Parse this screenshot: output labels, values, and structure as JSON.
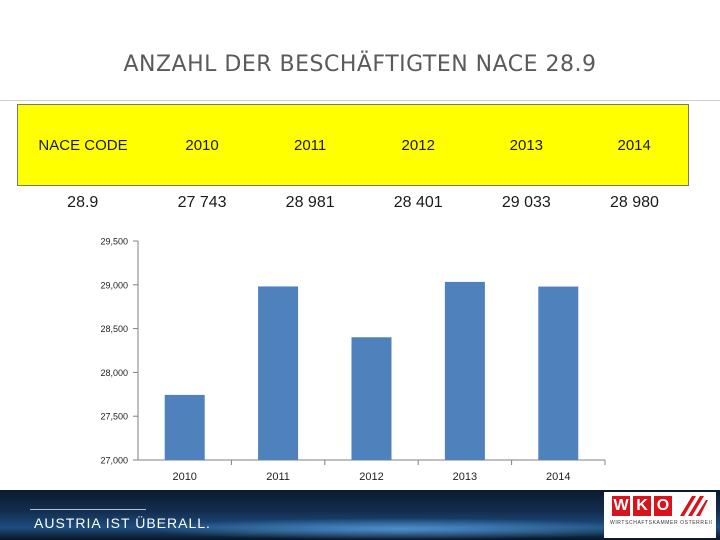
{
  "page": {
    "title": "ANZAHL DER BESCHÄFTIGTEN NACE 28.9",
    "colors": {
      "header_fill": "#ffff00",
      "bar": "#4f81bd",
      "brand_red": "#d9131b"
    }
  },
  "table": {
    "headers": [
      "NACE CODE",
      "2010",
      "2011",
      "2012",
      "2013",
      "2014"
    ],
    "row": [
      "28.9",
      "27 743",
      "28 981",
      "28 401",
      "29 033",
      "28 980"
    ]
  },
  "chart_data": {
    "type": "bar",
    "title": "",
    "xlabel": "",
    "ylabel": "",
    "categories": [
      "2010",
      "2011",
      "2012",
      "2013",
      "2014"
    ],
    "values": [
      27743,
      28981,
      28401,
      29033,
      28980
    ],
    "ylim": [
      27000,
      29500
    ],
    "yticks": [
      27000,
      27500,
      28000,
      28500,
      29000,
      29500
    ],
    "ytick_labels": [
      "27,000",
      "27,500",
      "28,000",
      "28,500",
      "29,000",
      "29,500"
    ],
    "grid": false,
    "legend": "none",
    "color": "#4f81bd"
  },
  "footer": {
    "slogan": "AUSTRIA IST ÜBERALL.",
    "logo_letters": [
      "W",
      "K",
      "O"
    ],
    "logo_subtitle": "WIRTSCHAFTSKAMMER ÖSTERREICH"
  }
}
